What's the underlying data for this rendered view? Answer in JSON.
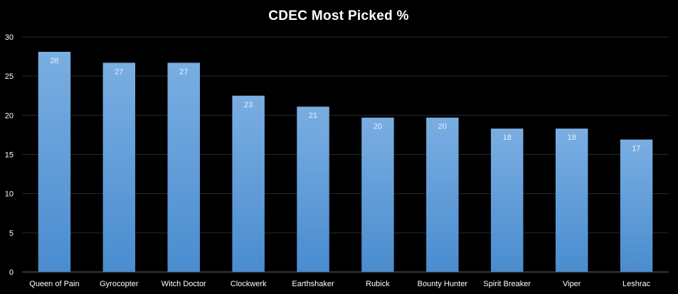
{
  "chart_data": {
    "type": "bar",
    "title": "CDEC Most Picked %",
    "xlabel": "",
    "ylabel": "",
    "categories": [
      "Queen of Pain",
      "Gyrocopter",
      "Witch Doctor",
      "Clockwerk",
      "Earthshaker",
      "Rubick",
      "Bounty Hunter",
      "Spirit Breaker",
      "Viper",
      "Leshrac"
    ],
    "values": [
      28.1,
      26.7,
      26.7,
      22.5,
      21.1,
      19.7,
      19.7,
      18.3,
      18.3,
      16.9
    ],
    "data_labels": [
      "28",
      "27",
      "27",
      "23",
      "21",
      "20",
      "20",
      "18",
      "18",
      "17"
    ],
    "ylim": [
      0,
      30
    ],
    "yticks": [
      0,
      5,
      10,
      15,
      20,
      25,
      30
    ],
    "grid": true,
    "legend": "none",
    "colors": {
      "bar_top": "#7aaee2",
      "bar_bottom": "#4a8ccf",
      "background": "#000000"
    }
  }
}
